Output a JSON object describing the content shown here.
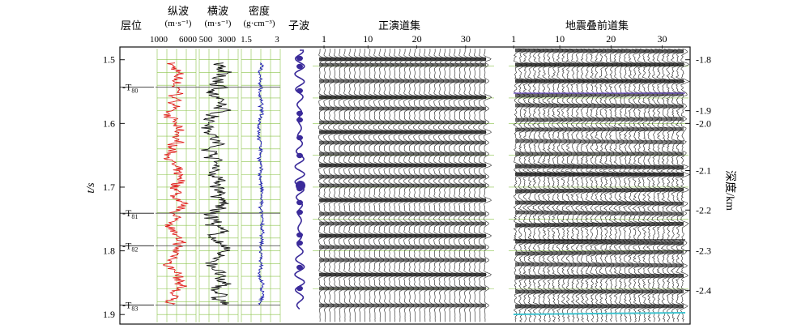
{
  "chart_data": {
    "type": "line",
    "headers": {
      "layer": "层位",
      "vp": "纵波",
      "vp_unit": "(m·s⁻¹)",
      "vs": "横波",
      "vs_unit": "(m·s⁻¹)",
      "rho": "密度",
      "rho_unit": "(g·cm⁻³)",
      "wavelet": "子波",
      "synthetic": "正演道集",
      "real": "地震叠前道集"
    },
    "ylabel_left": "t/s",
    "ylabel_right": "深度/km",
    "t_range": [
      1.48,
      1.915
    ],
    "t_ticks": [
      "1.5",
      "1.6",
      "1.7",
      "1.8",
      "1.9"
    ],
    "depth_ticks": [
      {
        "t": 1.5,
        "label": "1.8"
      },
      {
        "t": 1.58,
        "label": "1.9"
      },
      {
        "t": 1.6,
        "label": "2.0"
      },
      {
        "t": 1.674,
        "label": "2.1"
      },
      {
        "t": 1.736,
        "label": "2.2"
      },
      {
        "t": 1.8,
        "label": "2.3"
      },
      {
        "t": 1.862,
        "label": "2.4"
      }
    ],
    "vp_ticks": [
      "1000",
      "6000"
    ],
    "vp_range": [
      1000,
      6000
    ],
    "vs_ticks": [
      "500",
      "3000"
    ],
    "vs_range": [
      500,
      3000
    ],
    "rho_ticks": [
      "1.5",
      "3"
    ],
    "rho_range": [
      1.5,
      3.0
    ],
    "synthetic_trace_ticks": [
      "1",
      "10",
      "20",
      "30"
    ],
    "real_trace_ticks": [
      "1",
      "10",
      "20",
      "30"
    ],
    "horizons": [
      {
        "name": "T",
        "sub": "80",
        "t": 1.543
      },
      {
        "name": "T",
        "sub": "81",
        "t": 1.741
      },
      {
        "name": "T",
        "sub": "82",
        "t": 1.792
      },
      {
        "name": "T",
        "sub": "83",
        "t": 1.885
      }
    ],
    "grid": true
  },
  "colors": {
    "vp": "#e0201c",
    "vs": "#111111",
    "rho": "#1b1bb0",
    "wavelet": "#3a2a9a",
    "grid": "#8bc34a",
    "horizon": "#555555",
    "highlight_a": "#6a4bc4",
    "highlight_b": "#40c4d0"
  }
}
